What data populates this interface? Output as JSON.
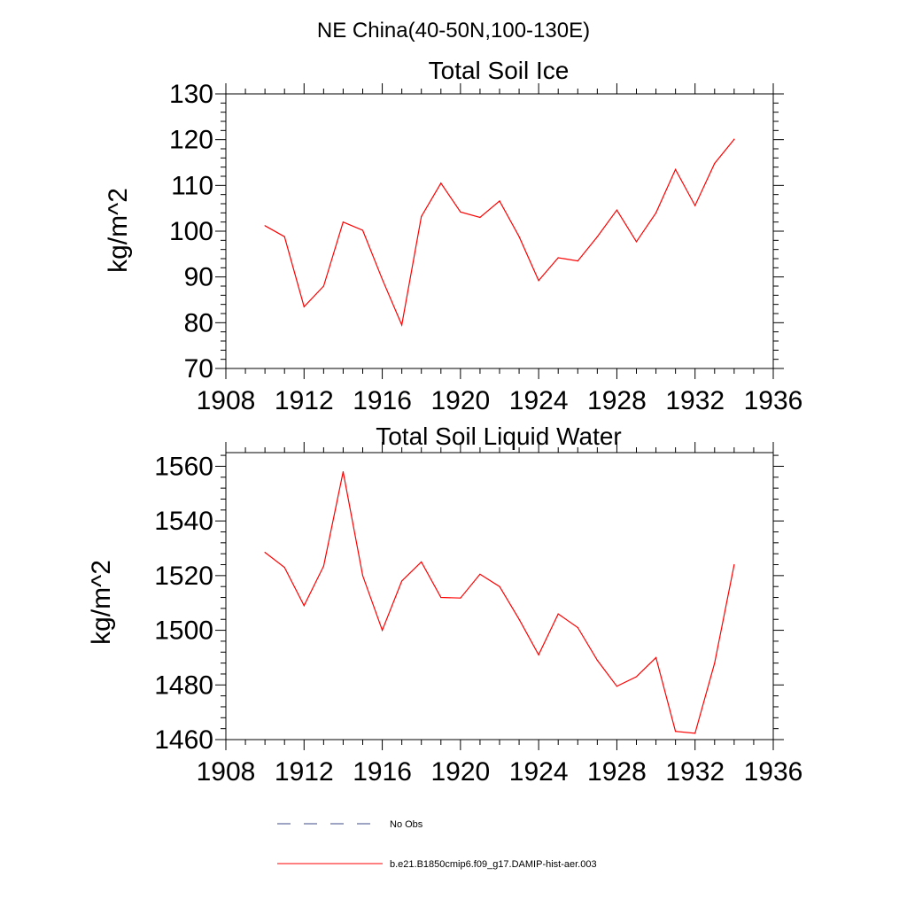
{
  "figure": {
    "title": "NE China(40-50N,100-130E)",
    "legend": [
      {
        "label": "No Obs",
        "color": "#3b4a8a",
        "style": "dashed"
      },
      {
        "label": "b.e21.B1850cmip6.f09_g17.DAMIP-hist-aer.003",
        "color": "#ff0000",
        "style": "solid"
      }
    ]
  },
  "chart_data": [
    {
      "type": "line",
      "title": "Total Soil Ice",
      "xlabel": "",
      "ylabel": "kg/m^2",
      "xlim": [
        1908,
        1936
      ],
      "ylim": [
        70,
        130
      ],
      "xticks": [
        1908,
        1912,
        1916,
        1920,
        1924,
        1928,
        1932,
        1936
      ],
      "yticks": [
        70,
        80,
        90,
        100,
        110,
        120,
        130
      ],
      "grid": false,
      "x": [
        1910,
        1911,
        1912,
        1913,
        1914,
        1915,
        1916,
        1917,
        1918,
        1919,
        1920,
        1921,
        1922,
        1923,
        1924,
        1925,
        1926,
        1927,
        1928,
        1929,
        1930,
        1931,
        1932,
        1933,
        1934
      ],
      "series": [
        {
          "name": "b.e21.B1850cmip6.f09_g17.DAMIP-hist-aer.003",
          "color": "#ff0000",
          "values": [
            101.2,
            98.8,
            83.5,
            88.0,
            102.0,
            100.2,
            89.5,
            79.5,
            103.2,
            110.5,
            104.2,
            103.0,
            106.6,
            98.8,
            89.2,
            94.2,
            93.5,
            98.8,
            104.6,
            97.7,
            104.0,
            113.5,
            105.6,
            114.8,
            120.1
          ]
        }
      ]
    },
    {
      "type": "line",
      "title": "Total Soil Liquid Water",
      "xlabel": "",
      "ylabel": "kg/m^2",
      "xlim": [
        1908,
        1936
      ],
      "ylim": [
        1460,
        1565
      ],
      "xticks": [
        1908,
        1912,
        1916,
        1920,
        1924,
        1928,
        1932,
        1936
      ],
      "yticks": [
        1460,
        1480,
        1500,
        1520,
        1540,
        1560
      ],
      "grid": false,
      "x": [
        1910,
        1911,
        1912,
        1913,
        1914,
        1915,
        1916,
        1917,
        1918,
        1919,
        1920,
        1921,
        1922,
        1923,
        1924,
        1925,
        1926,
        1927,
        1928,
        1929,
        1930,
        1931,
        1932,
        1933,
        1934
      ],
      "series": [
        {
          "name": "b.e21.B1850cmip6.f09_g17.DAMIP-hist-aer.003",
          "color": "#ff0000",
          "values": [
            1528.5,
            1523.0,
            1509.0,
            1523.5,
            1558.0,
            1520.0,
            1500.0,
            1518.0,
            1525.0,
            1512.0,
            1511.8,
            1520.5,
            1516.0,
            1504.0,
            1491.0,
            1506.0,
            1501.0,
            1489.0,
            1479.5,
            1483.0,
            1490.0,
            1463.0,
            1462.3,
            1488.0,
            1524.0
          ]
        }
      ]
    }
  ]
}
